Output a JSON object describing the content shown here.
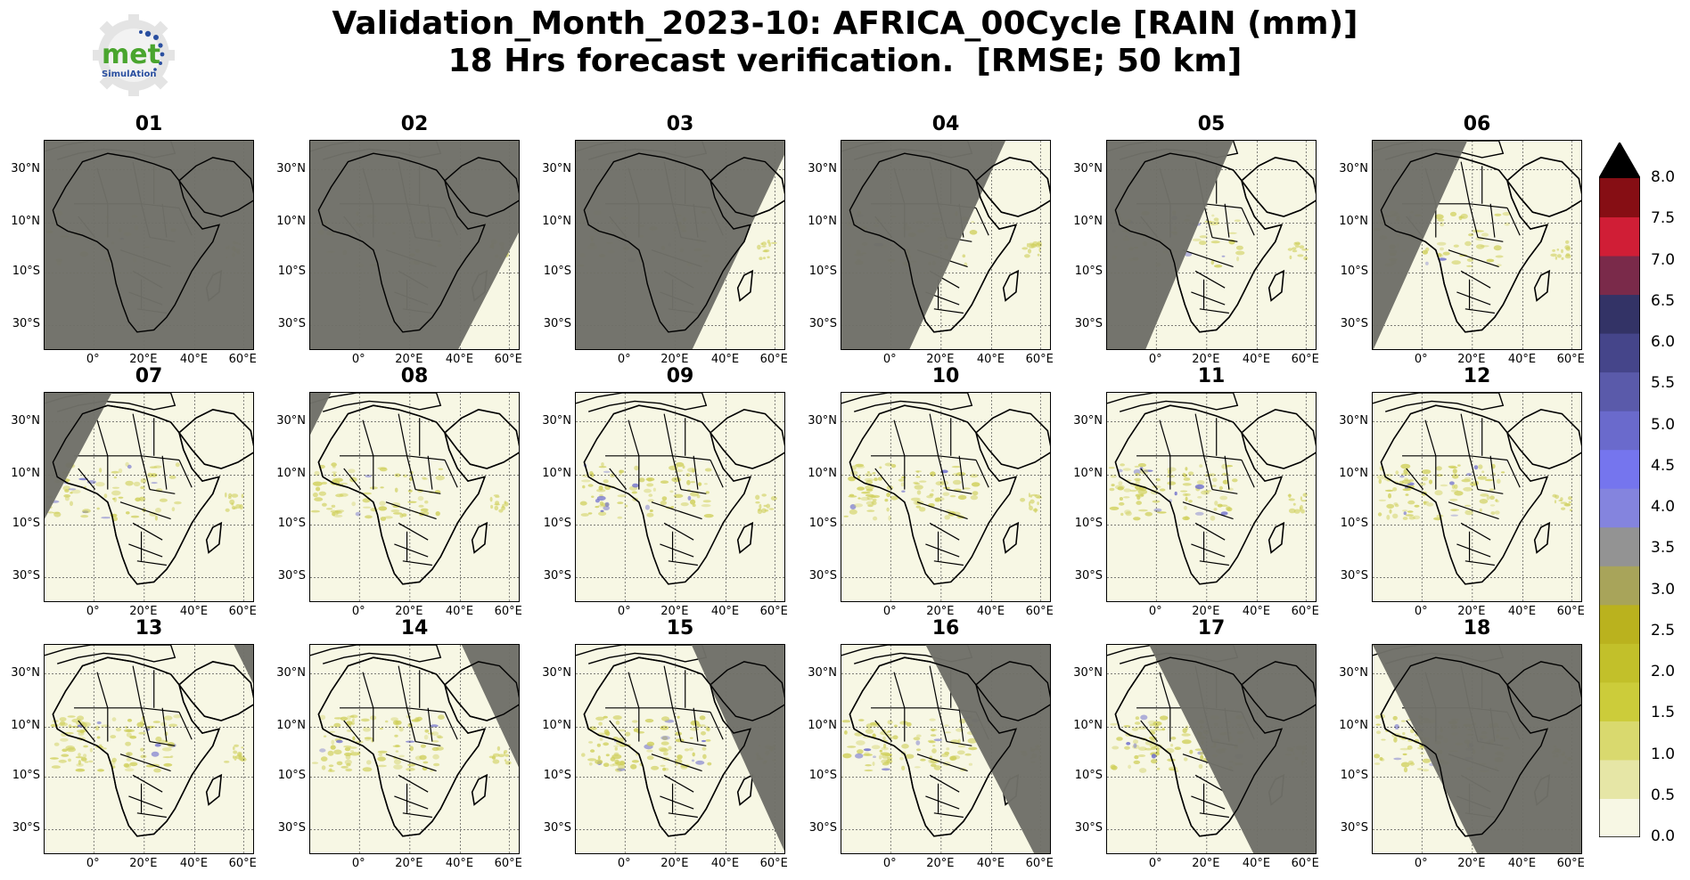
{
  "title": {
    "line1": "Validation_Month_2023-10: AFRICA_00Cycle [RAIN (mm)]",
    "line2": "18 Hrs forecast verification.  [RMSE; 50 km]"
  },
  "logo": {
    "word": "met",
    "sub": "SimulAtion"
  },
  "panels": [
    {
      "label": "01",
      "dark": "full"
    },
    {
      "label": "02",
      "dark": "left",
      "edge": [
        [
          1.0,
          0.42
        ],
        [
          0.7,
          1.0
        ]
      ]
    },
    {
      "label": "03",
      "dark": "left",
      "edge": [
        [
          1.0,
          0.05
        ],
        [
          0.55,
          1.0
        ]
      ]
    },
    {
      "label": "04",
      "dark": "left",
      "edge": [
        [
          0.78,
          0.0
        ],
        [
          0.32,
          1.0
        ]
      ]
    },
    {
      "label": "05",
      "dark": "left",
      "edge": [
        [
          0.6,
          0.0
        ],
        [
          0.18,
          1.0
        ]
      ]
    },
    {
      "label": "06",
      "dark": "left",
      "edge": [
        [
          0.45,
          0.0
        ],
        [
          0.0,
          1.0
        ]
      ]
    },
    {
      "label": "07",
      "dark": "left",
      "edge": [
        [
          0.32,
          0.0
        ],
        [
          0.0,
          0.6
        ]
      ]
    },
    {
      "label": "08",
      "dark": "left",
      "edge": [
        [
          0.1,
          0.0
        ],
        [
          0.0,
          0.2
        ]
      ]
    },
    {
      "label": "09",
      "dark": "none"
    },
    {
      "label": "10",
      "dark": "none"
    },
    {
      "label": "11",
      "dark": "none"
    },
    {
      "label": "12",
      "dark": "none"
    },
    {
      "label": "13",
      "dark": "right",
      "edge": [
        [
          0.9,
          0.0
        ],
        [
          1.0,
          0.2
        ]
      ]
    },
    {
      "label": "14",
      "dark": "right",
      "edge": [
        [
          0.72,
          0.0
        ],
        [
          1.0,
          0.6
        ]
      ]
    },
    {
      "label": "15",
      "dark": "right",
      "edge": [
        [
          0.55,
          0.0
        ],
        [
          1.0,
          1.0
        ]
      ]
    },
    {
      "label": "16",
      "dark": "right",
      "edge": [
        [
          0.4,
          0.0
        ],
        [
          0.92,
          1.0
        ]
      ]
    },
    {
      "label": "17",
      "dark": "right",
      "edge": [
        [
          0.2,
          0.0
        ],
        [
          0.7,
          1.0
        ]
      ]
    },
    {
      "label": "18",
      "dark": "right",
      "edge": [
        [
          0.0,
          0.0
        ],
        [
          0.5,
          1.0
        ]
      ]
    }
  ],
  "axes": {
    "lat_ticks": [
      "30°N",
      "10°N",
      "10°S",
      "30°S"
    ],
    "lon_ticks": [
      "0°",
      "20°E",
      "40°E",
      "60°E"
    ]
  },
  "colorbar": {
    "ticks": [
      "8.0",
      "7.5",
      "7.0",
      "6.5",
      "6.0",
      "5.5",
      "5.0",
      "4.5",
      "4.0",
      "3.5",
      "3.0",
      "2.5",
      "2.0",
      "1.5",
      "1.0",
      "0.5",
      "0.0"
    ],
    "colors": [
      "#f7f7e4",
      "#e6e6a6",
      "#d9d96e",
      "#cccc3a",
      "#c2c02a",
      "#bab21e",
      "#a8a45a",
      "#939393",
      "#8484de",
      "#7575ee",
      "#6a6acc",
      "#5a5aaa",
      "#45458a",
      "#333366",
      "#7a2a4a",
      "#d01e36",
      "#860e14"
    ],
    "extend_color": "#000000"
  },
  "colors": {
    "dark_overlay": "#6f6f68",
    "land_bg": "#f7f7e4",
    "rain": "#cfcf5a"
  }
}
